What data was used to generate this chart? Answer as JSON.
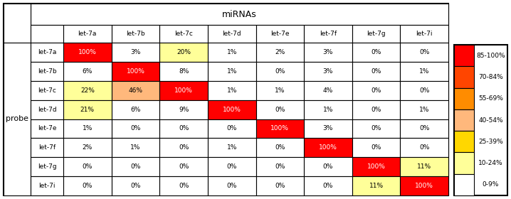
{
  "mirnas": [
    "let-7a",
    "let-7b",
    "let-7c",
    "let-7d",
    "let-7e",
    "let-7f",
    "let-7g",
    "let-7i"
  ],
  "probes": [
    "let-7a",
    "let-7b",
    "let-7c",
    "let-7d",
    "let-7e",
    "let-7f",
    "let-7g",
    "let-7i"
  ],
  "values": [
    [
      100,
      3,
      20,
      1,
      2,
      3,
      0,
      0
    ],
    [
      6,
      100,
      8,
      1,
      0,
      3,
      0,
      1
    ],
    [
      22,
      46,
      100,
      1,
      1,
      4,
      0,
      0
    ],
    [
      21,
      6,
      9,
      100,
      0,
      1,
      0,
      1
    ],
    [
      1,
      0,
      0,
      0,
      100,
      3,
      0,
      0
    ],
    [
      2,
      1,
      0,
      1,
      0,
      100,
      0,
      0
    ],
    [
      0,
      0,
      0,
      0,
      0,
      0,
      100,
      11
    ],
    [
      0,
      0,
      0,
      0,
      0,
      0,
      11,
      100
    ]
  ],
  "color_ranges": [
    {
      "range": "85-100%",
      "color": "#FF0000"
    },
    {
      "range": "70-84%",
      "color": "#FF4500"
    },
    {
      "range": "55-69%",
      "color": "#FF8C00"
    },
    {
      "range": "40-54%",
      "color": "#FFB87C"
    },
    {
      "range": "25-39%",
      "color": "#FFD700"
    },
    {
      "range": "10-24%",
      "color": "#FFFF99"
    },
    {
      "range": "0-9%",
      "color": "#FFFFFF"
    }
  ],
  "main_title": "miRNAs",
  "row_header": "probe",
  "fig_bg": "#FFFFFF"
}
